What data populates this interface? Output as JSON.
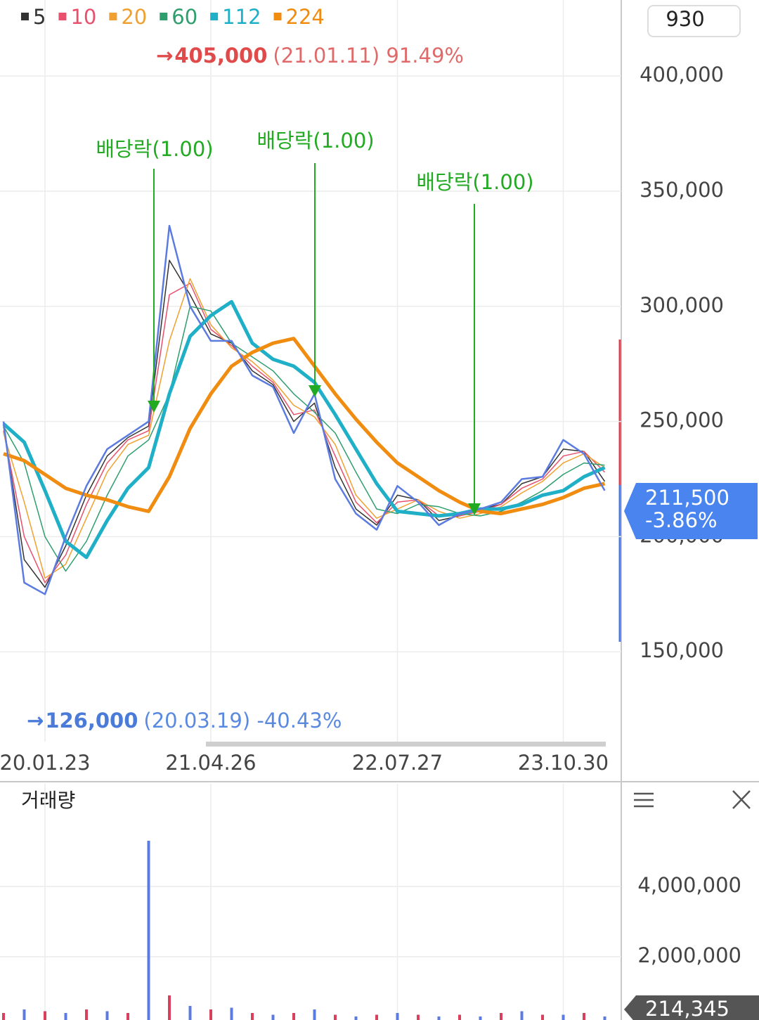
{
  "chart_data": [
    {
      "type": "line",
      "categories": [
        null,
        null,
        "20.01.23",
        null,
        null,
        null,
        null,
        null,
        null,
        null,
        "21.04.26",
        null,
        null,
        null,
        null,
        null,
        null,
        null,
        null,
        "22.07.27",
        null,
        null,
        null,
        null,
        null,
        null,
        null,
        "23.10.30",
        null,
        null
      ],
      "values": [
        250000,
        180000,
        175000,
        200000,
        222000,
        238000,
        244000,
        250000,
        335000,
        300000,
        285000,
        285000,
        270000,
        265000,
        245000,
        262000,
        225000,
        210000,
        203000,
        222000,
        215000,
        205000,
        210000,
        212000,
        215000,
        225000,
        226000,
        242000,
        236000,
        220000
      ],
      "color": "#5b7be0",
      "series": [
        {
          "name": "5",
          "color": "#333333",
          "values": [
            248000,
            190000,
            178000,
            196000,
            218000,
            235000,
            243000,
            248000,
            320000,
            305000,
            288000,
            284000,
            272000,
            266000,
            250000,
            258000,
            230000,
            212000,
            205000,
            218000,
            216000,
            207000,
            209000,
            212000,
            214000,
            223000,
            226000,
            238000,
            237000,
            224000
          ]
        },
        {
          "name": "10",
          "color": "#e8506e",
          "values": [
            246000,
            200000,
            180000,
            192000,
            214000,
            232000,
            242000,
            246000,
            305000,
            310000,
            290000,
            283000,
            274000,
            267000,
            253000,
            255000,
            235000,
            215000,
            206000,
            215000,
            216000,
            209000,
            209000,
            211000,
            214000,
            221000,
            225000,
            235000,
            237000,
            228000
          ]
        },
        {
          "name": "20",
          "color": "#f0a030",
          "values": [
            245000,
            215000,
            182000,
            188000,
            208000,
            228000,
            240000,
            244000,
            285000,
            312000,
            292000,
            282000,
            276000,
            268000,
            257000,
            252000,
            240000,
            218000,
            208000,
            212000,
            216000,
            211000,
            208000,
            210000,
            213000,
            219000,
            224000,
            232000,
            236000,
            230000
          ]
        },
        {
          "name": "60",
          "color": "#2e9e6e",
          "values": [
            248000,
            232000,
            200000,
            185000,
            198000,
            218000,
            235000,
            242000,
            262000,
            300000,
            298000,
            284000,
            278000,
            272000,
            262000,
            254000,
            245000,
            228000,
            212000,
            210000,
            214000,
            213000,
            210000,
            209000,
            211000,
            215000,
            220000,
            227000,
            232000,
            231000
          ]
        },
        {
          "name": "112",
          "color": "#1fb0c8",
          "values": [
            249000,
            241000,
            220000,
            198000,
            191000,
            207000,
            221000,
            230000,
            262000,
            287000,
            296000,
            302000,
            284000,
            277000,
            274000,
            267000,
            253000,
            238000,
            223000,
            211000,
            210000,
            209000,
            210000,
            212000,
            212000,
            214000,
            218000,
            220000,
            226000,
            230000
          ]
        },
        {
          "name": "224",
          "color": "#f08c10",
          "values": [
            236000,
            233000,
            227000,
            221000,
            218000,
            216000,
            213000,
            211000,
            226000,
            247000,
            262000,
            274000,
            280000,
            284000,
            286000,
            274000,
            262000,
            251000,
            241000,
            232000,
            226000,
            220000,
            215000,
            211000,
            210000,
            212000,
            214000,
            217000,
            221000,
            223000
          ]
        }
      ],
      "ylim": [
        111000,
        433000
      ],
      "yticks": [
        {
          "value": 150000,
          "label": "150,000"
        },
        {
          "value": 200000,
          "label": "200,000"
        },
        {
          "value": 250000,
          "label": "250,000"
        },
        {
          "value": 300000,
          "label": "300,000"
        },
        {
          "value": 350000,
          "label": "350,000"
        },
        {
          "value": 400000,
          "label": "400,000"
        }
      ],
      "grid": true,
      "annotations": {
        "high": {
          "arrow": "→",
          "price": "405,000",
          "detail": "(21.01.11) 91.49%"
        },
        "low": {
          "arrow": "→",
          "price": "126,000",
          "detail": "(20.03.19) -40.43%"
        }
      },
      "events": [
        {
          "label": "배당락(1.00)"
        },
        {
          "label": "배당락(1.00)"
        },
        {
          "label": "배당락(1.00)"
        }
      ],
      "current": {
        "price": "211,500",
        "change": "-3.86%"
      },
      "unit_button": "930"
    },
    {
      "type": "bar",
      "title": "거래량",
      "values": [
        400000,
        500000,
        450000,
        400000,
        500000,
        450000,
        400000,
        5300000,
        900000,
        600000,
        500000,
        550000,
        400000,
        350000,
        400000,
        500000,
        350000,
        300000,
        350000,
        400000,
        350000,
        300000,
        350000,
        300000,
        400000,
        450000,
        350000,
        350000,
        400000,
        300000
      ],
      "color": "#d8405e",
      "ylim": [
        0,
        6920000
      ],
      "yticks": [
        {
          "value": 2000000,
          "label": "2,000,000"
        },
        {
          "value": 4000000,
          "label": "4,000,000"
        }
      ],
      "grid": true,
      "current": "214,345"
    }
  ]
}
